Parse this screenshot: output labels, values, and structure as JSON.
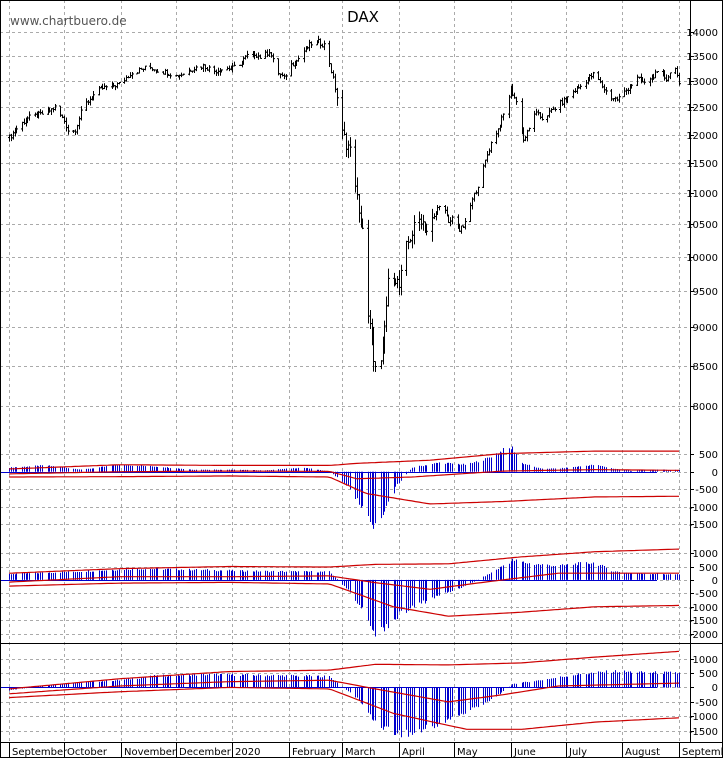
{
  "watermark": "www.chartbuero.de",
  "chart_data": {
    "type": "candlestick",
    "title": "DAX",
    "months": [
      {
        "label": "September",
        "day": 0
      },
      {
        "label": "October",
        "day": 30
      },
      {
        "label": "November",
        "day": 61
      },
      {
        "label": "December",
        "day": 91
      },
      {
        "label": "2020",
        "day": 122
      },
      {
        "label": "February",
        "day": 153
      },
      {
        "label": "March",
        "day": 182
      },
      {
        "label": "April",
        "day": 213
      },
      {
        "label": "May",
        "day": 243
      },
      {
        "label": "June",
        "day": 274
      },
      {
        "label": "July",
        "day": 304
      },
      {
        "label": "August",
        "day": 335
      },
      {
        "label": "Septemb",
        "day": 366
      }
    ],
    "x_range": [
      -5,
      372
    ],
    "price": {
      "ylim": [
        7700,
        14500
      ],
      "scale": "log",
      "yticks": [
        8000,
        8500,
        9000,
        9500,
        10000,
        10500,
        11000,
        11500,
        12000,
        12500,
        13000,
        13500,
        14000
      ],
      "closes": [
        [
          0,
          11950
        ],
        [
          5,
          12150
        ],
        [
          10,
          12300
        ],
        [
          15,
          12350
        ],
        [
          20,
          12400
        ],
        [
          25,
          12500
        ],
        [
          28,
          12350
        ],
        [
          30,
          12250
        ],
        [
          33,
          12000
        ],
        [
          36,
          12100
        ],
        [
          40,
          12500
        ],
        [
          45,
          12700
        ],
        [
          50,
          12850
        ],
        [
          55,
          12900
        ],
        [
          61,
          12950
        ],
        [
          66,
          13150
        ],
        [
          70,
          13200
        ],
        [
          76,
          13280
        ],
        [
          82,
          13200
        ],
        [
          88,
          13150
        ],
        [
          91,
          13100
        ],
        [
          95,
          13150
        ],
        [
          100,
          13250
        ],
        [
          106,
          13300
        ],
        [
          112,
          13200
        ],
        [
          118,
          13250
        ],
        [
          122,
          13250
        ],
        [
          126,
          13350
        ],
        [
          130,
          13500
        ],
        [
          134,
          13550
        ],
        [
          138,
          13450
        ],
        [
          142,
          13600
        ],
        [
          146,
          13200
        ],
        [
          150,
          13050
        ],
        [
          153,
          13300
        ],
        [
          157,
          13400
        ],
        [
          161,
          13600
        ],
        [
          165,
          13750
        ],
        [
          169,
          13780
        ],
        [
          173,
          13700
        ],
        [
          176,
          13200
        ],
        [
          179,
          12700
        ],
        [
          182,
          12000
        ],
        [
          185,
          11800
        ],
        [
          188,
          11500
        ],
        [
          191,
          10600
        ],
        [
          193,
          10450
        ],
        [
          195,
          9200
        ],
        [
          197,
          9000
        ],
        [
          200,
          8450
        ],
        [
          202,
          8300
        ],
        [
          204,
          8700
        ],
        [
          207,
          9600
        ],
        [
          209,
          9800
        ],
        [
          211,
          9700
        ],
        [
          213,
          9550
        ],
        [
          216,
          10050
        ],
        [
          219,
          10300
        ],
        [
          222,
          10500
        ],
        [
          225,
          10600
        ],
        [
          228,
          10400
        ],
        [
          232,
          10600
        ],
        [
          236,
          10900
        ],
        [
          240,
          10500
        ],
        [
          243,
          10650
        ],
        [
          246,
          10400
        ],
        [
          249,
          10500
        ],
        [
          252,
          10800
        ],
        [
          255,
          11050
        ],
        [
          258,
          11300
        ],
        [
          261,
          11650
        ],
        [
          264,
          11950
        ],
        [
          267,
          12100
        ],
        [
          271,
          12450
        ],
        [
          274,
          12850
        ],
        [
          277,
          12600
        ],
        [
          279,
          12300
        ],
        [
          281,
          11900
        ],
        [
          284,
          12100
        ],
        [
          287,
          12400
        ],
        [
          291,
          12300
        ],
        [
          295,
          12400
        ],
        [
          300,
          12550
        ],
        [
          304,
          12650
        ],
        [
          308,
          12800
        ],
        [
          312,
          12900
        ],
        [
          316,
          13050
        ],
        [
          320,
          13150
        ],
        [
          324,
          12900
        ],
        [
          328,
          12700
        ],
        [
          332,
          12650
        ],
        [
          335,
          12750
        ],
        [
          339,
          12900
        ],
        [
          343,
          13050
        ],
        [
          347,
          12950
        ],
        [
          351,
          13100
        ],
        [
          355,
          13150
        ],
        [
          359,
          13050
        ],
        [
          362,
          13200
        ],
        [
          364,
          13300
        ],
        [
          366,
          12900
        ]
      ]
    },
    "panels": [
      {
        "yticks": [
          500,
          0,
          -500,
          -1000,
          -1500
        ],
        "ylim": [
          -1750,
          850
        ],
        "histogram": [
          [
            0,
            120
          ],
          [
            20,
            180
          ],
          [
            40,
            60
          ],
          [
            60,
            200
          ],
          [
            80,
            150
          ],
          [
            100,
            60
          ],
          [
            120,
            60
          ],
          [
            140,
            40
          ],
          [
            160,
            120
          ],
          [
            175,
            10
          ],
          [
            185,
            -420
          ],
          [
            195,
            -1200
          ],
          [
            200,
            -1600
          ],
          [
            205,
            -1050
          ],
          [
            212,
            -380
          ],
          [
            220,
            120
          ],
          [
            235,
            260
          ],
          [
            250,
            200
          ],
          [
            260,
            360
          ],
          [
            270,
            620
          ],
          [
            275,
            680
          ],
          [
            280,
            250
          ],
          [
            290,
            90
          ],
          [
            300,
            90
          ],
          [
            320,
            200
          ],
          [
            330,
            90
          ],
          [
            340,
            20
          ],
          [
            350,
            60
          ],
          [
            366,
            50
          ]
        ],
        "upper": [
          [
            0,
            80
          ],
          [
            60,
            200
          ],
          [
            120,
            180
          ],
          [
            175,
            180
          ],
          [
            190,
            240
          ],
          [
            230,
            330
          ],
          [
            270,
            520
          ],
          [
            320,
            590
          ],
          [
            366,
            590
          ]
        ],
        "middle": [
          [
            0,
            -60
          ],
          [
            60,
            0
          ],
          [
            120,
            20
          ],
          [
            175,
            10
          ],
          [
            190,
            -200
          ],
          [
            220,
            -150
          ],
          [
            270,
            20
          ],
          [
            320,
            60
          ],
          [
            366,
            40
          ]
        ],
        "lower": [
          [
            0,
            -150
          ],
          [
            60,
            -140
          ],
          [
            120,
            -120
          ],
          [
            175,
            -150
          ],
          [
            195,
            -620
          ],
          [
            230,
            -920
          ],
          [
            270,
            -850
          ],
          [
            320,
            -720
          ],
          [
            366,
            -700
          ]
        ]
      },
      {
        "yticks": [
          1000,
          500,
          0,
          -500,
          -1000,
          -1500,
          -2000
        ],
        "ylim": [
          -2200,
          1450
        ],
        "histogram": [
          [
            0,
            220
          ],
          [
            40,
            320
          ],
          [
            70,
            420
          ],
          [
            100,
            380
          ],
          [
            140,
            320
          ],
          [
            175,
            300
          ],
          [
            185,
            -380
          ],
          [
            195,
            -1300
          ],
          [
            200,
            -2050
          ],
          [
            205,
            -1750
          ],
          [
            215,
            -1200
          ],
          [
            230,
            -700
          ],
          [
            250,
            -200
          ],
          [
            260,
            150
          ],
          [
            275,
            740
          ],
          [
            285,
            600
          ],
          [
            300,
            520
          ],
          [
            310,
            600
          ],
          [
            320,
            640
          ],
          [
            330,
            320
          ],
          [
            340,
            250
          ],
          [
            366,
            200
          ]
        ],
        "upper": [
          [
            0,
            250
          ],
          [
            60,
            420
          ],
          [
            120,
            500
          ],
          [
            175,
            480
          ],
          [
            200,
            580
          ],
          [
            240,
            600
          ],
          [
            280,
            860
          ],
          [
            320,
            1050
          ],
          [
            366,
            1150
          ]
        ],
        "middle": [
          [
            0,
            -80
          ],
          [
            60,
            120
          ],
          [
            120,
            120
          ],
          [
            175,
            150
          ],
          [
            200,
            -100
          ],
          [
            230,
            -350
          ],
          [
            260,
            -80
          ],
          [
            300,
            250
          ],
          [
            366,
            250
          ]
        ],
        "lower": [
          [
            0,
            -230
          ],
          [
            60,
            -120
          ],
          [
            120,
            -90
          ],
          [
            175,
            -150
          ],
          [
            210,
            -1000
          ],
          [
            240,
            -1350
          ],
          [
            280,
            -1200
          ],
          [
            320,
            -1000
          ],
          [
            366,
            -950
          ]
        ]
      },
      {
        "yticks": [
          1000,
          500,
          0,
          -500,
          -1000,
          -1500
        ],
        "ylim": [
          -1750,
          1400
        ],
        "histogram": [
          [
            0,
            -100
          ],
          [
            30,
            150
          ],
          [
            60,
            250
          ],
          [
            80,
            400
          ],
          [
            110,
            450
          ],
          [
            140,
            420
          ],
          [
            175,
            380
          ],
          [
            190,
            -380
          ],
          [
            200,
            -1200
          ],
          [
            210,
            -1550
          ],
          [
            220,
            -1600
          ],
          [
            235,
            -1250
          ],
          [
            250,
            -850
          ],
          [
            265,
            -350
          ],
          [
            275,
            120
          ],
          [
            290,
            250
          ],
          [
            310,
            450
          ],
          [
            330,
            560
          ],
          [
            345,
            520
          ],
          [
            366,
            500
          ]
        ],
        "upper": [
          [
            0,
            -50
          ],
          [
            60,
            300
          ],
          [
            120,
            550
          ],
          [
            175,
            600
          ],
          [
            200,
            800
          ],
          [
            240,
            780
          ],
          [
            280,
            850
          ],
          [
            320,
            1050
          ],
          [
            366,
            1250
          ]
        ],
        "middle": [
          [
            0,
            -220
          ],
          [
            60,
            50
          ],
          [
            120,
            200
          ],
          [
            175,
            250
          ],
          [
            200,
            -50
          ],
          [
            240,
            -500
          ],
          [
            270,
            -250
          ],
          [
            300,
            50
          ],
          [
            366,
            150
          ]
        ],
        "lower": [
          [
            0,
            -350
          ],
          [
            60,
            -150
          ],
          [
            120,
            0
          ],
          [
            175,
            -50
          ],
          [
            210,
            -900
          ],
          [
            250,
            -1450
          ],
          [
            280,
            -1450
          ],
          [
            320,
            -1200
          ],
          [
            366,
            -1050
          ]
        ]
      }
    ]
  }
}
